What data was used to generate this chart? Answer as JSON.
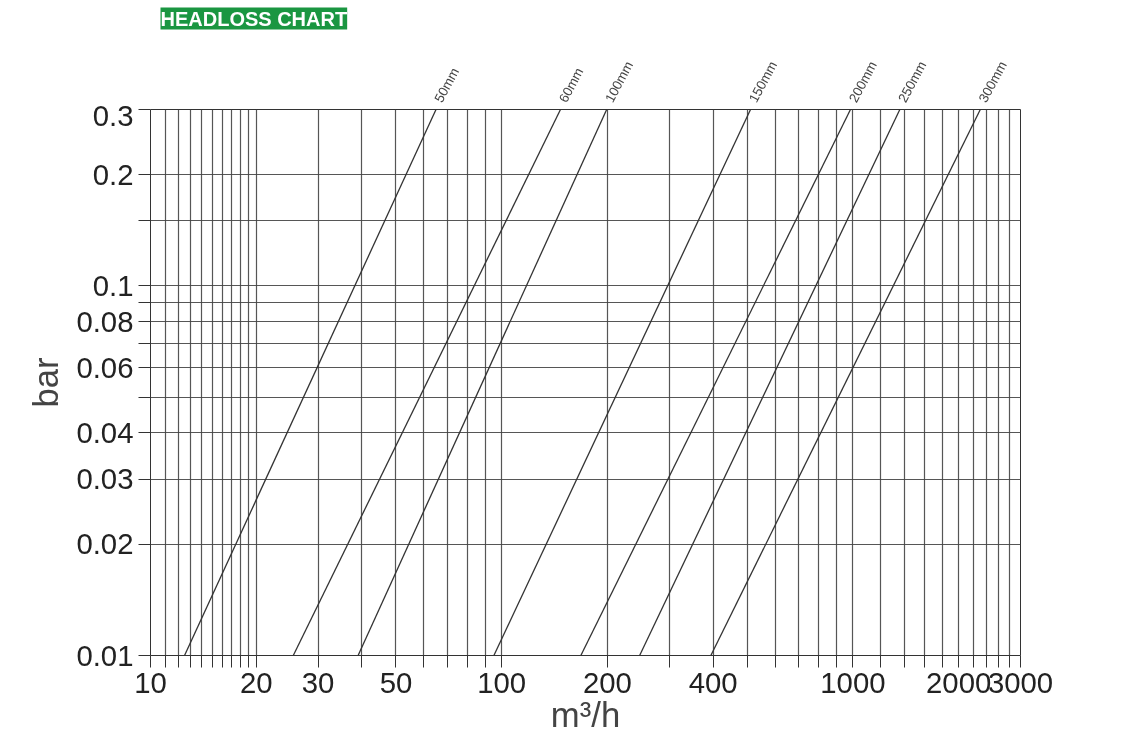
{
  "chart_data": {
    "type": "line",
    "title": "HEADLOSS CHART",
    "xlabel": "m³/h",
    "ylabel": "bar",
    "log": "xy",
    "grid": true,
    "marker": "none",
    "line_style": "solid",
    "xlim": [
      10,
      3000
    ],
    "ylim": [
      0.01,
      0.3
    ],
    "xticks": [
      10,
      {
        "value": 11,
        "label": null
      },
      {
        "value": 12,
        "label": null
      },
      {
        "value": 13,
        "label": null
      },
      {
        "value": 14,
        "label": null
      },
      {
        "value": 15,
        "label": null
      },
      {
        "value": 16,
        "label": null
      },
      {
        "value": 17,
        "label": null
      },
      {
        "value": 18,
        "label": null
      },
      {
        "value": 19,
        "label": null
      },
      20,
      30,
      {
        "value": 40,
        "label": null
      },
      50,
      {
        "value": 60,
        "label": null
      },
      {
        "value": 70,
        "label": null
      },
      {
        "value": 80,
        "label": null
      },
      {
        "value": 90,
        "label": null
      },
      100,
      200,
      {
        "value": 300,
        "label": null
      },
      400,
      {
        "value": 500,
        "label": null
      },
      {
        "value": 600,
        "label": null
      },
      {
        "value": 700,
        "label": null
      },
      {
        "value": 800,
        "label": null
      },
      {
        "value": 900,
        "label": null
      },
      1000,
      {
        "value": 1200,
        "label": null
      },
      {
        "value": 1400,
        "label": null
      },
      {
        "value": 1600,
        "label": null
      },
      {
        "value": 1800,
        "label": null
      },
      2000,
      {
        "value": 2200,
        "label": null
      },
      {
        "value": 2400,
        "label": null
      },
      {
        "value": 2600,
        "label": null
      },
      {
        "value": 2800,
        "label": null
      },
      3000
    ],
    "yticks": [
      0.01,
      0.02,
      0.03,
      0.04,
      {
        "value": 0.05,
        "label": null
      },
      0.06,
      {
        "value": 0.07,
        "label": null
      },
      0.08,
      {
        "value": 0.09,
        "label": null
      },
      0.1,
      {
        "value": 0.15,
        "label": null
      },
      0.2,
      0.3
    ],
    "series": [
      {
        "name": "50mm",
        "color": "#333333",
        "x": [
          12.5,
          65
        ],
        "values": [
          0.01,
          0.3
        ]
      },
      {
        "name": "60mm",
        "color": "#333333",
        "x": [
          25.5,
          147
        ],
        "values": [
          0.01,
          0.3
        ]
      },
      {
        "name": "100mm",
        "color": "#333333",
        "x": [
          39,
          199
        ],
        "values": [
          0.01,
          0.3
        ]
      },
      {
        "name": "150mm",
        "color": "#333333",
        "x": [
          95,
          511
        ],
        "values": [
          0.01,
          0.3
        ]
      },
      {
        "name": "200mm",
        "color": "#333333",
        "x": [
          168,
          984
        ],
        "values": [
          0.01,
          0.3
        ]
      },
      {
        "name": "250mm",
        "color": "#333333",
        "x": [
          247,
          1360
        ],
        "values": [
          0.01,
          0.3
        ]
      },
      {
        "name": "300mm",
        "color": "#333333",
        "x": [
          394,
          2305
        ],
        "values": [
          0.01,
          0.3
        ]
      }
    ]
  }
}
